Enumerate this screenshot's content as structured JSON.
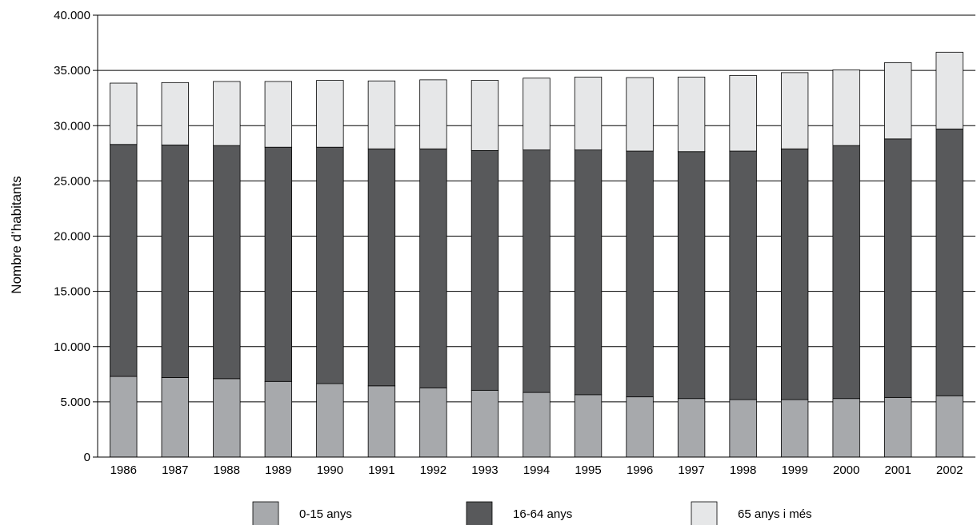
{
  "chart_data": {
    "type": "bar",
    "stacked": true,
    "categories": [
      "1986",
      "1987",
      "1988",
      "1989",
      "1990",
      "1991",
      "1992",
      "1993",
      "1994",
      "1995",
      "1996",
      "1997",
      "1998",
      "1999",
      "2000",
      "2001",
      "2002"
    ],
    "series": [
      {
        "name": "0-15 anys",
        "color": "#a7a9ac",
        "values": [
          7300,
          7200,
          7100,
          6850,
          6650,
          6450,
          6250,
          6050,
          5850,
          5650,
          5450,
          5300,
          5200,
          5200,
          5300,
          5400,
          5550
        ]
      },
      {
        "name": "16-64 anys",
        "color": "#58595b",
        "values": [
          21000,
          21050,
          21100,
          21200,
          21400,
          21450,
          21650,
          21700,
          21950,
          22150,
          22250,
          22350,
          22500,
          22700,
          22900,
          23400,
          24150
        ]
      },
      {
        "name": "65 anys i més",
        "color": "#e6e7e8",
        "values": [
          5550,
          5650,
          5800,
          5950,
          6050,
          6150,
          6250,
          6350,
          6500,
          6600,
          6650,
          6750,
          6850,
          6900,
          6850,
          6900,
          6950
        ]
      }
    ],
    "ylabel": "Nombre d’habitants",
    "ylim": [
      0,
      40000
    ],
    "yticks": [
      "0",
      "5.000",
      "10.000",
      "15.000",
      "20.000",
      "25.000",
      "30.000",
      "35.000",
      "40.000"
    ],
    "ytick_values": [
      0,
      5000,
      10000,
      15000,
      20000,
      25000,
      30000,
      35000,
      40000
    ],
    "grid": true,
    "legend_position": "bottom"
  }
}
